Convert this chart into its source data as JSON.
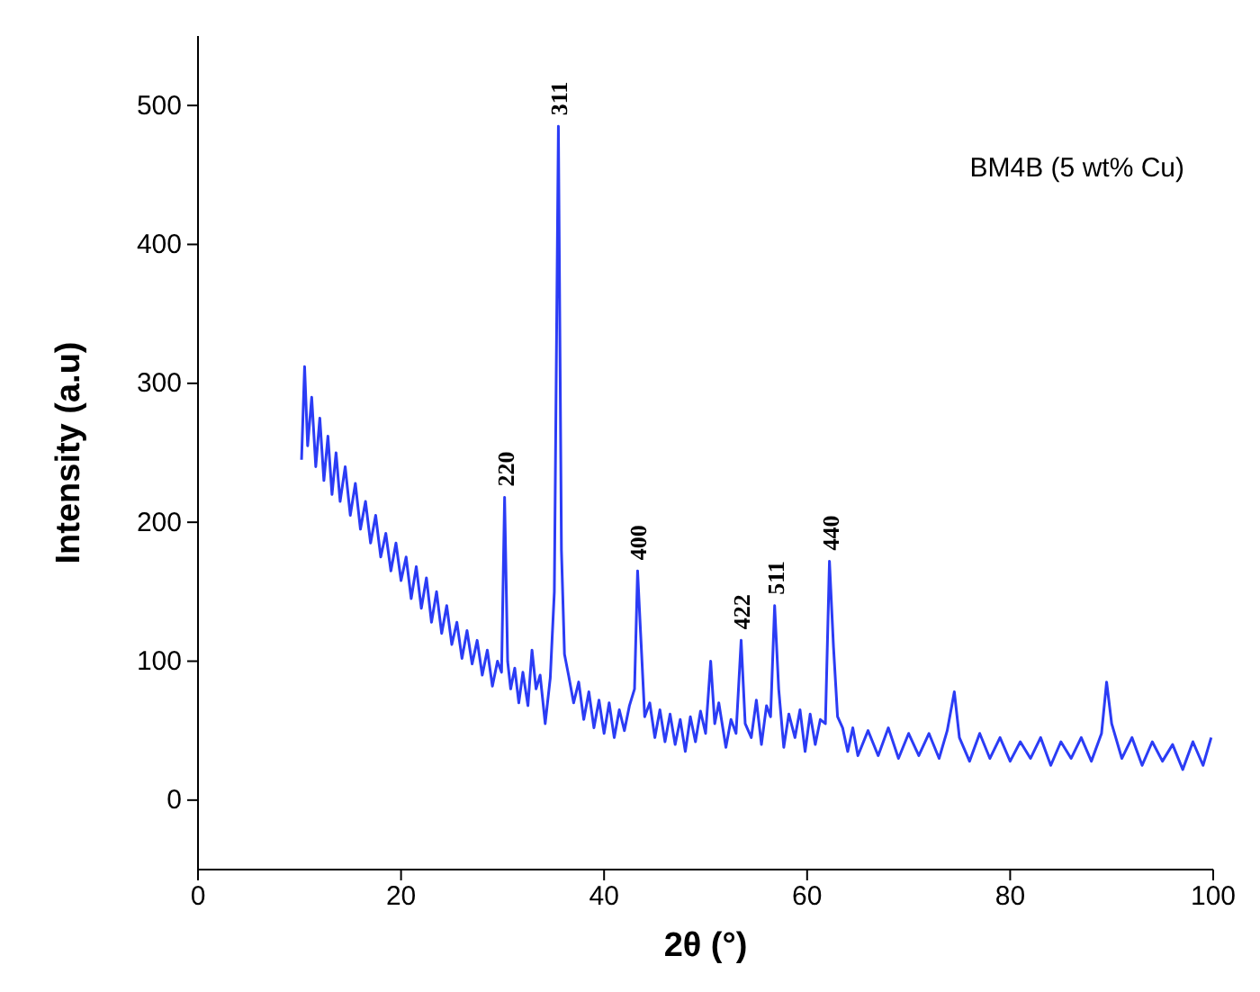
{
  "chart_data": {
    "type": "line",
    "title": "BM4B (5 wt% Cu)",
    "xlabel": "2θ (°)",
    "ylabel": "Intensity (a.u)",
    "xlim": [
      0,
      100
    ],
    "xticks": [
      0,
      20,
      40,
      60,
      80,
      100
    ],
    "ylim": [
      -50,
      550
    ],
    "yticks": [
      0,
      100,
      200,
      300,
      400,
      500
    ],
    "grid": false,
    "marker": "none",
    "line_style": "solid",
    "series": [
      {
        "color": "#2b3cf5",
        "x": [
          10.2,
          10.5,
          10.8,
          11.2,
          11.6,
          12,
          12.4,
          12.8,
          13.2,
          13.6,
          14,
          14.5,
          15,
          15.5,
          16,
          16.5,
          17,
          17.5,
          18,
          18.5,
          19,
          19.5,
          20,
          20.5,
          21,
          21.5,
          22,
          22.5,
          23,
          23.5,
          24,
          24.5,
          25,
          25.5,
          26,
          26.5,
          27,
          27.5,
          28,
          28.5,
          29,
          29.5,
          29.9,
          30.2,
          30.5,
          30.8,
          31.2,
          31.6,
          32,
          32.5,
          32.9,
          33.3,
          33.7,
          34.2,
          34.7,
          35.1,
          35.5,
          35.8,
          36.1,
          36.5,
          37,
          37.5,
          38,
          38.5,
          39,
          39.5,
          40,
          40.5,
          41,
          41.5,
          42,
          42.5,
          43,
          43.3,
          43.6,
          44,
          44.5,
          45,
          45.5,
          46,
          46.5,
          47,
          47.5,
          48,
          48.5,
          49,
          49.5,
          50,
          50.5,
          50.9,
          51.3,
          52,
          52.5,
          53,
          53.5,
          53.9,
          54.5,
          55,
          55.5,
          56,
          56.4,
          56.8,
          57.2,
          57.7,
          58.2,
          58.8,
          59.3,
          59.8,
          60.3,
          60.8,
          61.3,
          61.8,
          62.2,
          62.6,
          63,
          63.5,
          64,
          64.5,
          65,
          66,
          67,
          68,
          69,
          70,
          71,
          72,
          73,
          73.8,
          74.5,
          75,
          76,
          77,
          78,
          79,
          80,
          81,
          82,
          83,
          84,
          85,
          86,
          87,
          88,
          89,
          89.5,
          90,
          91,
          92,
          93,
          94,
          95,
          96,
          97,
          98,
          99,
          99.8
        ],
        "values": [
          245,
          312,
          255,
          290,
          240,
          275,
          230,
          262,
          220,
          250,
          215,
          240,
          205,
          228,
          195,
          215,
          185,
          205,
          175,
          192,
          165,
          185,
          158,
          175,
          145,
          168,
          138,
          160,
          128,
          150,
          120,
          140,
          112,
          128,
          102,
          122,
          98,
          115,
          90,
          108,
          82,
          100,
          92,
          218,
          100,
          80,
          95,
          70,
          92,
          68,
          108,
          80,
          90,
          55,
          88,
          150,
          485,
          180,
          105,
          90,
          70,
          85,
          58,
          78,
          52,
          72,
          48,
          70,
          45,
          65,
          50,
          68,
          80,
          165,
          120,
          60,
          70,
          45,
          65,
          42,
          62,
          40,
          58,
          35,
          60,
          42,
          64,
          48,
          100,
          55,
          70,
          38,
          58,
          48,
          115,
          55,
          45,
          72,
          40,
          68,
          60,
          140,
          80,
          38,
          62,
          45,
          65,
          35,
          62,
          40,
          58,
          55,
          172,
          110,
          60,
          52,
          35,
          52,
          32,
          50,
          32,
          52,
          30,
          48,
          32,
          48,
          30,
          50,
          78,
          45,
          28,
          48,
          30,
          45,
          28,
          42,
          30,
          45,
          25,
          42,
          30,
          45,
          28,
          48,
          85,
          55,
          30,
          45,
          25,
          42,
          28,
          40,
          22,
          42,
          25,
          45
        ]
      }
    ],
    "annotations": [
      {
        "text": "220",
        "x": 30.2,
        "y": 218
      },
      {
        "text": "311",
        "x": 35.5,
        "y": 485
      },
      {
        "text": "400",
        "x": 43.3,
        "y": 165
      },
      {
        "text": "422",
        "x": 53.5,
        "y": 115
      },
      {
        "text": "511",
        "x": 56.8,
        "y": 140
      },
      {
        "text": "440",
        "x": 62.2,
        "y": 172
      }
    ]
  }
}
